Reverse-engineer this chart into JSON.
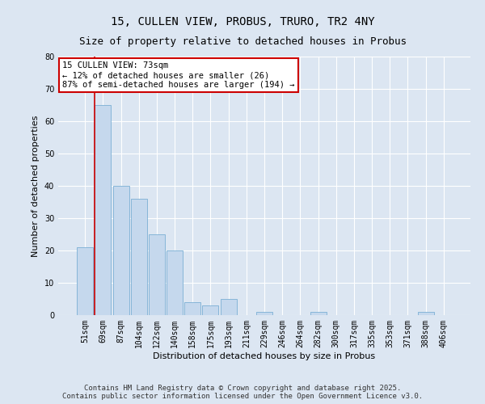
{
  "title1": "15, CULLEN VIEW, PROBUS, TRURO, TR2 4NY",
  "title2": "Size of property relative to detached houses in Probus",
  "xlabel": "Distribution of detached houses by size in Probus",
  "ylabel": "Number of detached properties",
  "categories": [
    "51sqm",
    "69sqm",
    "87sqm",
    "104sqm",
    "122sqm",
    "140sqm",
    "158sqm",
    "175sqm",
    "193sqm",
    "211sqm",
    "229sqm",
    "246sqm",
    "264sqm",
    "282sqm",
    "300sqm",
    "317sqm",
    "335sqm",
    "353sqm",
    "371sqm",
    "388sqm",
    "406sqm"
  ],
  "values": [
    21,
    65,
    40,
    36,
    25,
    20,
    4,
    3,
    5,
    0,
    1,
    0,
    0,
    1,
    0,
    0,
    0,
    0,
    0,
    1,
    0
  ],
  "bar_color": "#c5d8ed",
  "bar_edge_color": "#7aafd4",
  "highlight_index": 1,
  "highlight_line_color": "#cc0000",
  "ylim": [
    0,
    80
  ],
  "yticks": [
    0,
    10,
    20,
    30,
    40,
    50,
    60,
    70,
    80
  ],
  "annotation_text": "15 CULLEN VIEW: 73sqm\n← 12% of detached houses are smaller (26)\n87% of semi-detached houses are larger (194) →",
  "annotation_box_color": "#ffffff",
  "annotation_box_edgecolor": "#cc0000",
  "footer1": "Contains HM Land Registry data © Crown copyright and database right 2025.",
  "footer2": "Contains public sector information licensed under the Open Government Licence v3.0.",
  "background_color": "#dce6f2",
  "plot_background_color": "#dce6f2",
  "grid_color": "#ffffff",
  "title_fontsize": 10,
  "subtitle_fontsize": 9,
  "axis_label_fontsize": 8,
  "tick_fontsize": 7,
  "annotation_fontsize": 7.5,
  "footer_fontsize": 6.5
}
